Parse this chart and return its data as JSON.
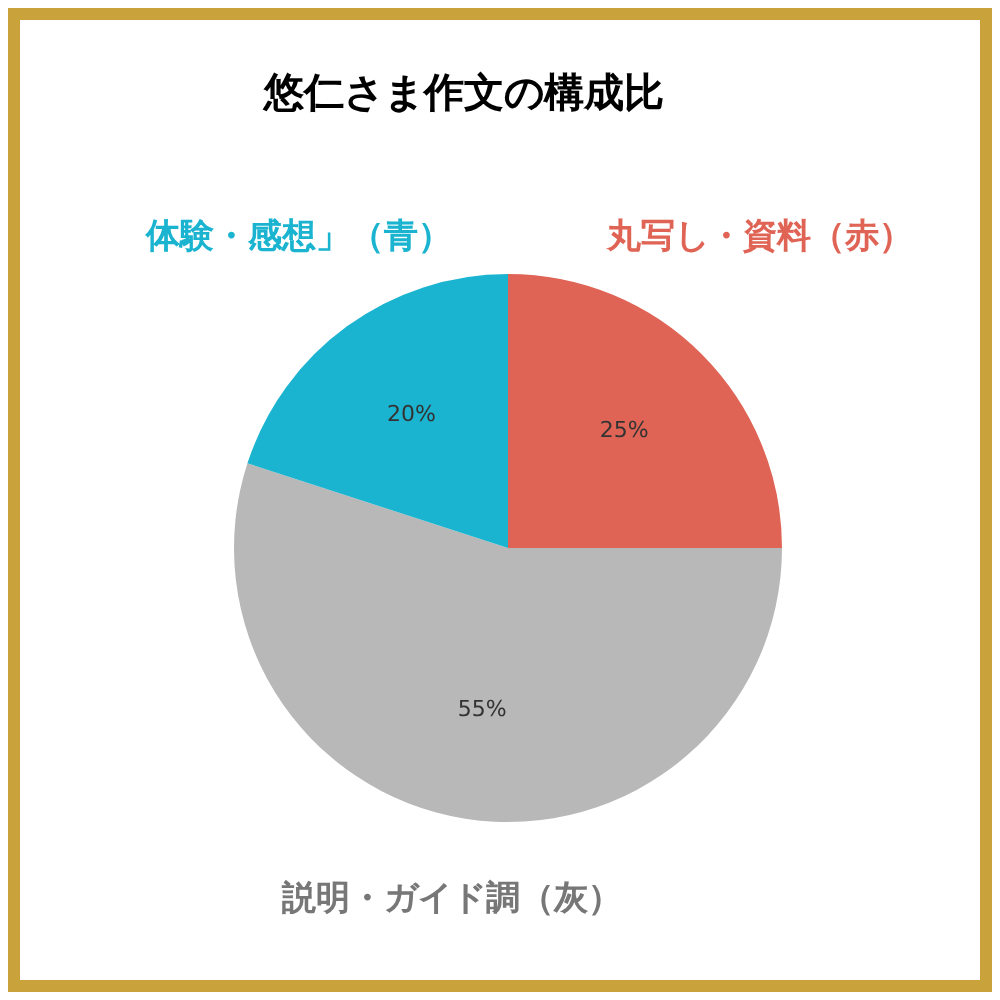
{
  "chart_data": {
    "type": "pie",
    "title": "悠仁さま作文の構成比",
    "categories": [
      "丸写し・資料（赤）",
      "説明・ガイド調（灰）",
      "体験・感想」（青）"
    ],
    "values": [
      25,
      55,
      20
    ],
    "value_labels": [
      "25%",
      "55%",
      "20%"
    ],
    "colors": [
      "#e06455",
      "#b8b8b8",
      "#1ab4d0"
    ],
    "legend": false
  }
}
